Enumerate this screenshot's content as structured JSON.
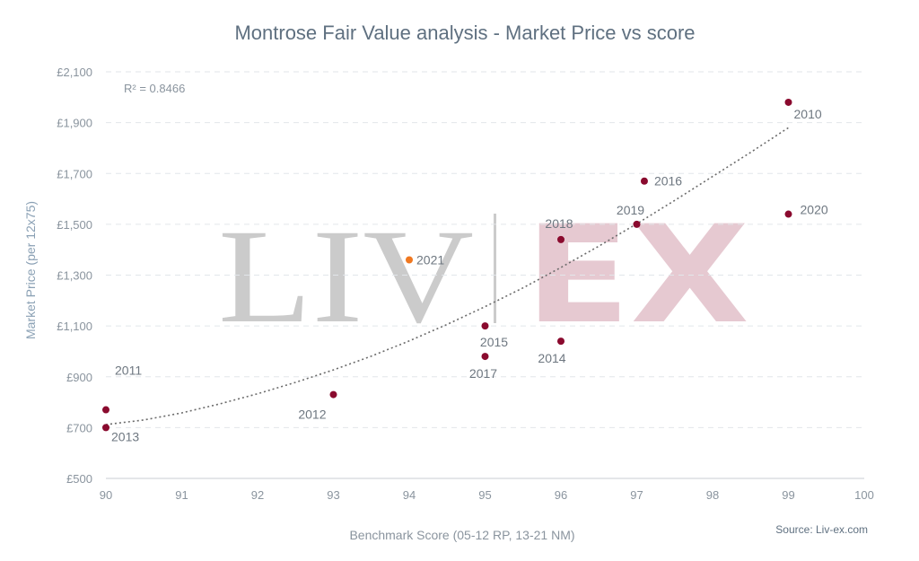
{
  "chart_data": {
    "type": "scatter",
    "title": "Montrose Fair Value analysis - Market Price vs score",
    "xlabel": "Benchmark Score (05-12 RP, 13-21 NM)",
    "ylabel": "Market Price (per 12x75)",
    "xlim": [
      90,
      100
    ],
    "ylim": [
      500,
      2100
    ],
    "x_ticks": [
      "90",
      "91",
      "92",
      "93",
      "94",
      "95",
      "96",
      "97",
      "98",
      "99",
      "100"
    ],
    "y_ticks": [
      "£500",
      "£700",
      "£900",
      "£1,100",
      "£1,300",
      "£1,500",
      "£1,700",
      "£1,900",
      "£2,100"
    ],
    "grid": true,
    "annotation_r2": "R² = 0.8466",
    "source": "Source: Liv-ex.com",
    "watermark": "LIV|EX",
    "colors": {
      "point": "#8a0a2e",
      "highlight": "#f07820",
      "trendline": "#6b6b6b"
    },
    "trendline": {
      "type": "exponential",
      "x": [
        90,
        90.5,
        91,
        91.5,
        92,
        92.5,
        93,
        93.5,
        94,
        94.5,
        95,
        95.5,
        96,
        96.5,
        97,
        97.5,
        98,
        98.5,
        99
      ],
      "y": [
        712,
        730,
        758,
        793,
        833,
        878,
        927,
        981,
        1041,
        1106,
        1176,
        1250,
        1330,
        1414,
        1502,
        1594,
        1688,
        1783,
        1880
      ]
    },
    "points": [
      {
        "label": "2011",
        "x": 90.0,
        "y": 770,
        "highlight": false
      },
      {
        "label": "2013",
        "x": 90.0,
        "y": 700,
        "highlight": false
      },
      {
        "label": "2012",
        "x": 93.0,
        "y": 830,
        "highlight": false
      },
      {
        "label": "2021",
        "x": 94.0,
        "y": 1360,
        "highlight": true
      },
      {
        "label": "2015",
        "x": 95.0,
        "y": 1100,
        "highlight": false
      },
      {
        "label": "2017",
        "x": 95.0,
        "y": 980,
        "highlight": false
      },
      {
        "label": "2018",
        "x": 96.0,
        "y": 1440,
        "highlight": false
      },
      {
        "label": "2014",
        "x": 96.0,
        "y": 1040,
        "highlight": false
      },
      {
        "label": "2019",
        "x": 97.0,
        "y": 1500,
        "highlight": false
      },
      {
        "label": "2016",
        "x": 97.1,
        "y": 1670,
        "highlight": false
      },
      {
        "label": "2010",
        "x": 99.0,
        "y": 1980,
        "highlight": false
      },
      {
        "label": "2020",
        "x": 99.0,
        "y": 1540,
        "highlight": false
      }
    ]
  }
}
